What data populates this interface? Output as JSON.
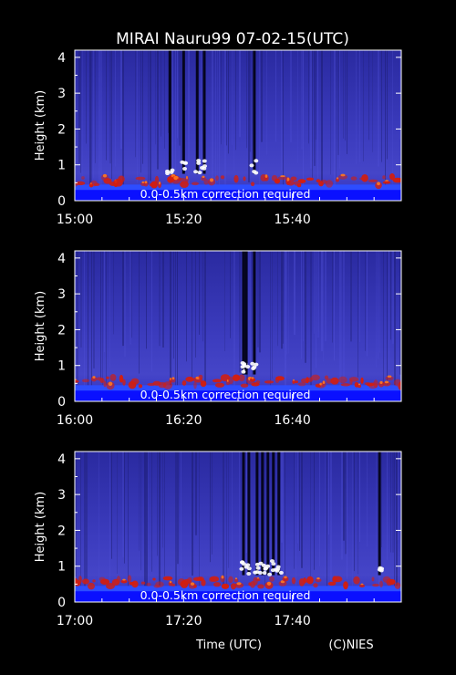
{
  "title": "MIRAI Nauru99 07-02-15(UTC)",
  "xlabel": "Time (UTC)",
  "credit": "(C)NIES",
  "colors": {
    "background": "#000000",
    "text": "#ffffff",
    "plot_bg": "#3a3ab8",
    "near_surface": "#0a10ff",
    "surface_band": "#2d4dff",
    "cloud_base": "#d21e10",
    "strong_echo": "#ffffff",
    "columns": "#05051f"
  },
  "chart_data": [
    {
      "type": "heatmap",
      "name": "panel-1500",
      "ylabel": "Height (km)",
      "xlim": [
        "15:00",
        "16:00"
      ],
      "x_ticks": [
        "15:00",
        "15:20",
        "15:40"
      ],
      "ylim": [
        0,
        4.2
      ],
      "y_ticks": [
        0,
        1,
        2,
        3,
        4
      ],
      "annotation": "0.0-0.5km correction required",
      "cloud_layer_height_km": 0.55,
      "dark_columns_min": [
        17.5,
        20.0,
        22.5,
        23.8,
        33.0
      ]
    },
    {
      "type": "heatmap",
      "name": "panel-1600",
      "ylabel": "Height (km)",
      "xlim": [
        "16:00",
        "17:00"
      ],
      "x_ticks": [
        "16:00",
        "16:20",
        "16:40"
      ],
      "ylim": [
        0,
        4.2
      ],
      "y_ticks": [
        0,
        1,
        2,
        3,
        4
      ],
      "annotation": "0.0-0.5km correction required",
      "cloud_layer_height_km": 0.55,
      "dark_columns_min": [
        31.0,
        31.5,
        33.0
      ]
    },
    {
      "type": "heatmap",
      "name": "panel-1700",
      "ylabel": "Height (km)",
      "xlim": [
        "17:00",
        "18:00"
      ],
      "x_ticks": [
        "17:00",
        "17:20",
        "17:40"
      ],
      "ylim": [
        0,
        4.2
      ],
      "y_ticks": [
        0,
        1,
        2,
        3,
        4
      ],
      "annotation": "0.0-0.5km correction required",
      "cloud_layer_height_km": 0.55,
      "dark_columns_min": [
        31.0,
        32.0,
        33.5,
        34.5,
        35.5,
        36.5,
        37.5,
        56.0
      ]
    }
  ]
}
